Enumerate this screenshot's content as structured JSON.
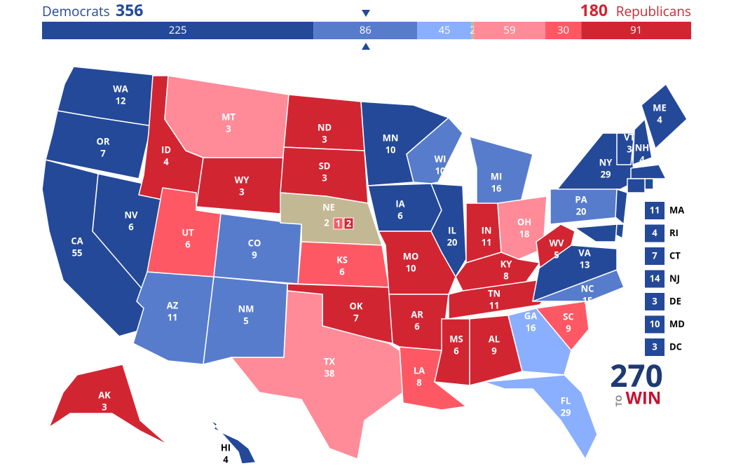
{
  "header": {
    "dem_label": "Democrats",
    "dem_total": 356,
    "rep_total": 180,
    "rep_label": "Republicans"
  },
  "bar": {
    "segments": [
      {
        "value": 225,
        "color": "#244999"
      },
      {
        "value": 86,
        "color": "#577ccc"
      },
      {
        "value": 45,
        "color": "#8aafff"
      },
      {
        "value": 2,
        "color": "#c2b893"
      },
      {
        "value": 59,
        "color": "#ff8b98"
      },
      {
        "value": 30,
        "color": "#ff5865"
      },
      {
        "value": 91,
        "color": "#d22532"
      }
    ]
  },
  "states": [
    {
      "abbr": "WA",
      "votes": 12,
      "color": "#244999"
    },
    {
      "abbr": "OR",
      "votes": 7,
      "color": "#244999"
    },
    {
      "abbr": "CA",
      "votes": 55,
      "color": "#244999"
    },
    {
      "abbr": "NV",
      "votes": 6,
      "color": "#244999"
    },
    {
      "abbr": "ID",
      "votes": 4,
      "color": "#d22532"
    },
    {
      "abbr": "MT",
      "votes": 3,
      "color": "#ff8b98"
    },
    {
      "abbr": "WY",
      "votes": 3,
      "color": "#d22532"
    },
    {
      "abbr": "UT",
      "votes": 6,
      "color": "#ff5865"
    },
    {
      "abbr": "AZ",
      "votes": 11,
      "color": "#577ccc"
    },
    {
      "abbr": "CO",
      "votes": 9,
      "color": "#577ccc"
    },
    {
      "abbr": "NM",
      "votes": 5,
      "color": "#577ccc"
    },
    {
      "abbr": "ND",
      "votes": 3,
      "color": "#d22532"
    },
    {
      "abbr": "SD",
      "votes": 3,
      "color": "#d22532"
    },
    {
      "abbr": "NE",
      "votes": 2,
      "color": "#c2b893"
    },
    {
      "abbr": "KS",
      "votes": 6,
      "color": "#ff5865"
    },
    {
      "abbr": "OK",
      "votes": 7,
      "color": "#d22532"
    },
    {
      "abbr": "TX",
      "votes": 38,
      "color": "#ff8b98"
    },
    {
      "abbr": "MN",
      "votes": 10,
      "color": "#244999"
    },
    {
      "abbr": "IA",
      "votes": 6,
      "color": "#244999"
    },
    {
      "abbr": "MO",
      "votes": 10,
      "color": "#d22532"
    },
    {
      "abbr": "AR",
      "votes": 6,
      "color": "#d22532"
    },
    {
      "abbr": "LA",
      "votes": 8,
      "color": "#ff5865"
    },
    {
      "abbr": "WI",
      "votes": 10,
      "color": "#577ccc"
    },
    {
      "abbr": "IL",
      "votes": 20,
      "color": "#244999"
    },
    {
      "abbr": "MI",
      "votes": 16,
      "color": "#577ccc"
    },
    {
      "abbr": "IN",
      "votes": 11,
      "color": "#d22532"
    },
    {
      "abbr": "OH",
      "votes": 18,
      "color": "#ff8b98"
    },
    {
      "abbr": "KY",
      "votes": 8,
      "color": "#d22532"
    },
    {
      "abbr": "TN",
      "votes": 11,
      "color": "#d22532"
    },
    {
      "abbr": "MS",
      "votes": 6,
      "color": "#d22532"
    },
    {
      "abbr": "AL",
      "votes": 9,
      "color": "#d22532"
    },
    {
      "abbr": "GA",
      "votes": 16,
      "color": "#8aafff"
    },
    {
      "abbr": "FL",
      "votes": 29,
      "color": "#8aafff"
    },
    {
      "abbr": "SC",
      "votes": 9,
      "color": "#ff5865"
    },
    {
      "abbr": "NC",
      "votes": 15,
      "color": "#577ccc"
    },
    {
      "abbr": "VA",
      "votes": 13,
      "color": "#244999"
    },
    {
      "abbr": "WV",
      "votes": 5,
      "color": "#d22532"
    },
    {
      "abbr": "PA",
      "votes": 20,
      "color": "#577ccc"
    },
    {
      "abbr": "NY",
      "votes": 29,
      "color": "#244999"
    },
    {
      "abbr": "VT",
      "votes": 3,
      "color": "#244999"
    },
    {
      "abbr": "NH",
      "votes": 4,
      "color": "#244999"
    },
    {
      "abbr": "ME",
      "votes": 4,
      "color": "#244999"
    },
    {
      "abbr": "AK",
      "votes": 3,
      "color": "#d22532"
    },
    {
      "abbr": "HI",
      "votes": 4,
      "color": "#244999"
    }
  ],
  "ne_districts": [
    {
      "votes": 1,
      "color": "#ff5865"
    },
    {
      "votes": 2,
      "color": "#d22532"
    }
  ],
  "callouts": [
    {
      "abbr": "MA",
      "votes": 11,
      "color": "#244999"
    },
    {
      "abbr": "RI",
      "votes": 4,
      "color": "#244999"
    },
    {
      "abbr": "CT",
      "votes": 7,
      "color": "#244999"
    },
    {
      "abbr": "NJ",
      "votes": 14,
      "color": "#244999"
    },
    {
      "abbr": "DE",
      "votes": 3,
      "color": "#244999"
    },
    {
      "abbr": "MD",
      "votes": 10,
      "color": "#244999"
    },
    {
      "abbr": "DC",
      "votes": 3,
      "color": "#244999"
    }
  ],
  "logo": {
    "number": "270",
    "to": "TO",
    "win": "WIN"
  }
}
